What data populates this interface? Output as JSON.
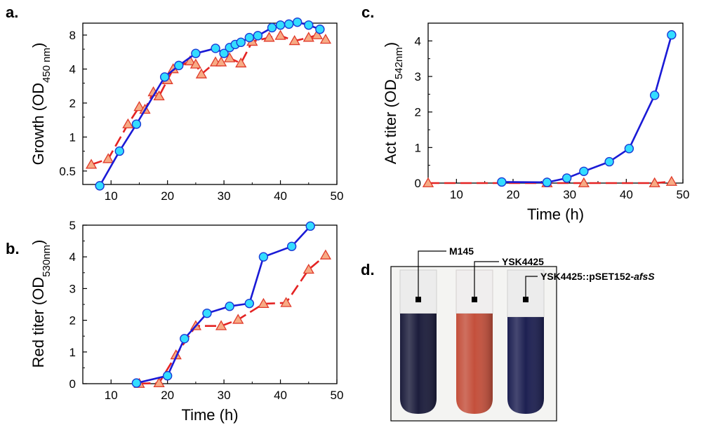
{
  "chart_data": [
    {
      "panel": "a.",
      "type": "line",
      "ylabel": "Growth (OD",
      "ylabel_sub": "450 nm",
      "ylabel_close": ")",
      "yscale": "log",
      "xlim": [
        5,
        50
      ],
      "ylim": [
        0.38,
        10.2
      ],
      "xticks": [
        10,
        20,
        30,
        40,
        50
      ],
      "yticks": [
        0.5,
        1,
        2,
        4,
        8
      ],
      "ytick_labels": [
        "0.5",
        "1",
        "2",
        "4",
        "8"
      ],
      "grid": false,
      "series": [
        {
          "marker": "circle",
          "color": "#1a1ad6",
          "fill": "#33ddff",
          "dash": false,
          "x": [
            8,
            11.5,
            14.5,
            19.5,
            22,
            25,
            28.5,
            30,
            31,
            32,
            33,
            34.5,
            36,
            38.5,
            40,
            41.5,
            43,
            45,
            47
          ],
          "y": [
            0.37,
            0.75,
            1.3,
            3.4,
            4.3,
            5.5,
            6.1,
            5.5,
            6.2,
            6.6,
            6.9,
            7.6,
            7.9,
            9.3,
            9.8,
            10.0,
            10.4,
            9.8,
            9.0
          ]
        },
        {
          "marker": "triangle",
          "color": "#e42323",
          "fill": "#f7ab85",
          "dash": true,
          "x": [
            6.5,
            9.5,
            13,
            15,
            16,
            17.5,
            18.5,
            20,
            21,
            24,
            25,
            26,
            28.5,
            29.5,
            31,
            33,
            35,
            38,
            40,
            42.5,
            45,
            46.5,
            48
          ],
          "y": [
            0.57,
            0.64,
            1.3,
            1.85,
            1.75,
            2.5,
            2.3,
            3.2,
            4.0,
            4.7,
            4.4,
            3.6,
            4.6,
            4.6,
            5.0,
            4.5,
            7.0,
            7.6,
            7.9,
            7.1,
            7.6,
            8.0,
            7.3
          ]
        }
      ]
    },
    {
      "panel": "b.",
      "type": "line",
      "xlabel": "Time (h)",
      "ylabel": "Red titer (OD",
      "ylabel_sub": "530nm",
      "ylabel_close": ")",
      "xlim": [
        5,
        50
      ],
      "ylim": [
        0,
        5
      ],
      "xticks": [
        10,
        20,
        30,
        40,
        50
      ],
      "yticks": [
        0,
        1,
        2,
        3,
        4,
        5
      ],
      "grid": false,
      "series": [
        {
          "marker": "circle",
          "color": "#1a1ad6",
          "fill": "#33ddff",
          "dash": false,
          "x": [
            14.5,
            20,
            23,
            27,
            31,
            34.5,
            37,
            42,
            45.3
          ],
          "y": [
            0.02,
            0.25,
            1.42,
            2.22,
            2.44,
            2.53,
            4.0,
            4.33,
            4.97
          ]
        },
        {
          "marker": "triangle",
          "color": "#e42323",
          "fill": "#f7ab85",
          "dash": true,
          "x": [
            15,
            18.5,
            21.5,
            25,
            29.5,
            32.5,
            37,
            41,
            45,
            48
          ],
          "y": [
            0.0,
            0.02,
            0.9,
            1.82,
            1.82,
            2.02,
            2.52,
            2.55,
            3.6,
            4.05
          ]
        }
      ]
    },
    {
      "panel": "c.",
      "type": "line",
      "xlabel": "Time (h)",
      "ylabel": "Act titer (OD",
      "ylabel_sub": "542nm",
      "ylabel_close": ")",
      "xlim": [
        5,
        50
      ],
      "ylim": [
        0,
        4.5
      ],
      "xticks": [
        10,
        20,
        30,
        40,
        50
      ],
      "yticks": [
        0,
        1,
        2,
        3,
        4
      ],
      "grid": false,
      "series": [
        {
          "marker": "circle",
          "color": "#1a1ad6",
          "fill": "#33ddff",
          "dash": false,
          "x": [
            18,
            26,
            29.5,
            32.5,
            37,
            40.5,
            45,
            48
          ],
          "y": [
            0.03,
            0.02,
            0.14,
            0.33,
            0.6,
            0.97,
            2.47,
            4.17
          ]
        },
        {
          "marker": "triangle",
          "color": "#e42323",
          "fill": "#f7ab85",
          "dash": true,
          "x": [
            5,
            26,
            32.5,
            45,
            48
          ],
          "y": [
            0.0,
            0.0,
            0.0,
            0.0,
            0.04
          ]
        }
      ]
    }
  ],
  "panel_d": {
    "panel": "d.",
    "tubes": [
      {
        "label": "M145",
        "color": "#1c1d3c"
      },
      {
        "label": "YSK4425",
        "color": "#c4503c"
      },
      {
        "label": "YSK4425::pSET152-",
        "label_italic": "afsS",
        "color": "#1d2052"
      }
    ]
  }
}
